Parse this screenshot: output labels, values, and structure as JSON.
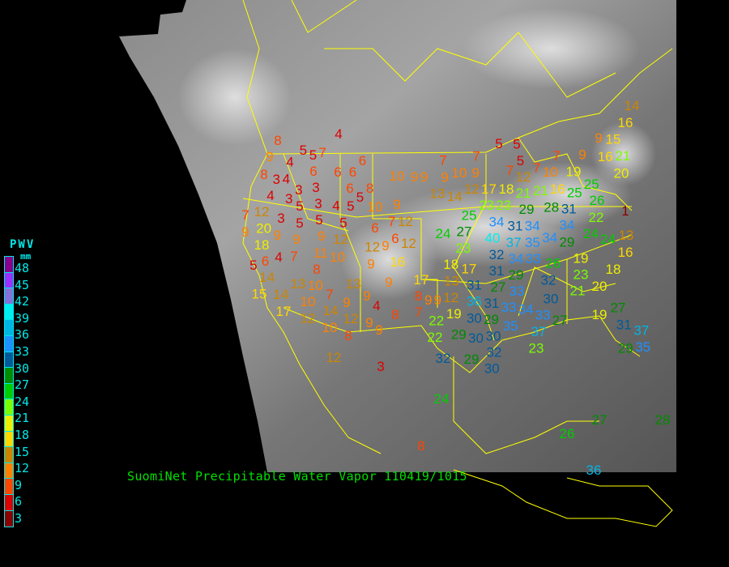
{
  "caption": "SuomiNet Precipitable Water Vapor  110419/1015",
  "legend": {
    "title": "PWV",
    "unit": "mm",
    "ticks": [
      "48",
      "45",
      "42",
      "39",
      "36",
      "33",
      "30",
      "27",
      "24",
      "21",
      "18",
      "15",
      "12",
      "9",
      "6",
      "3"
    ],
    "colors": [
      "#8b008b",
      "#9b30ff",
      "#8470d8",
      "#00eeee",
      "#00b4e6",
      "#1e90ff",
      "#005a9a",
      "#008b00",
      "#00cd00",
      "#7cfc00",
      "#eeee00",
      "#ffd700",
      "#cd8500",
      "#ff8000",
      "#ff4500",
      "#dd0000",
      "#8b0000"
    ]
  },
  "colors": {
    "background": "#000000",
    "borders": "#ffff00",
    "caption": "#00e000",
    "legend_text": "#00e8e8"
  },
  "stations": [
    4,
    8,
    5,
    7,
    9,
    6,
    4,
    5,
    6,
    8,
    4,
    6,
    6,
    10,
    9,
    3,
    3,
    3,
    3,
    6,
    8,
    5,
    4,
    5,
    3,
    4,
    5,
    10,
    9,
    7,
    12,
    3,
    5,
    5,
    5,
    6,
    7,
    12,
    9,
    20,
    9,
    12,
    9,
    6,
    18,
    9,
    12,
    9,
    12,
    6,
    4,
    7,
    11,
    10,
    8,
    9,
    16,
    5,
    14,
    15,
    13,
    10,
    7,
    13,
    9,
    17,
    14,
    10,
    9,
    9,
    8,
    9,
    17,
    14,
    4,
    12,
    12,
    8,
    7,
    10,
    9,
    8,
    9,
    22,
    22,
    12,
    3,
    24,
    8,
    14,
    16,
    9,
    15,
    9,
    16,
    21,
    20,
    9,
    5,
    5,
    7,
    9,
    7,
    9,
    5,
    7,
    7,
    7,
    10,
    12,
    13,
    14,
    17,
    12,
    10,
    16,
    19,
    18,
    21,
    21,
    25,
    25,
    28,
    26,
    23,
    23,
    25,
    29,
    31,
    22,
    34,
    31,
    24,
    1,
    24,
    27,
    34,
    34,
    34,
    29,
    40,
    37,
    35,
    24,
    13,
    16,
    23,
    32,
    34,
    33,
    18,
    17,
    31,
    29,
    19,
    26,
    32,
    27,
    18,
    23,
    21,
    20,
    31,
    13,
    12,
    9,
    19,
    36,
    31,
    33,
    33,
    30,
    34,
    29,
    30,
    33,
    27,
    19,
    27,
    29,
    30,
    35,
    31,
    30,
    32,
    37,
    37,
    29,
    35,
    30,
    23,
    32,
    29,
    26,
    27,
    28,
    36
  ]
}
